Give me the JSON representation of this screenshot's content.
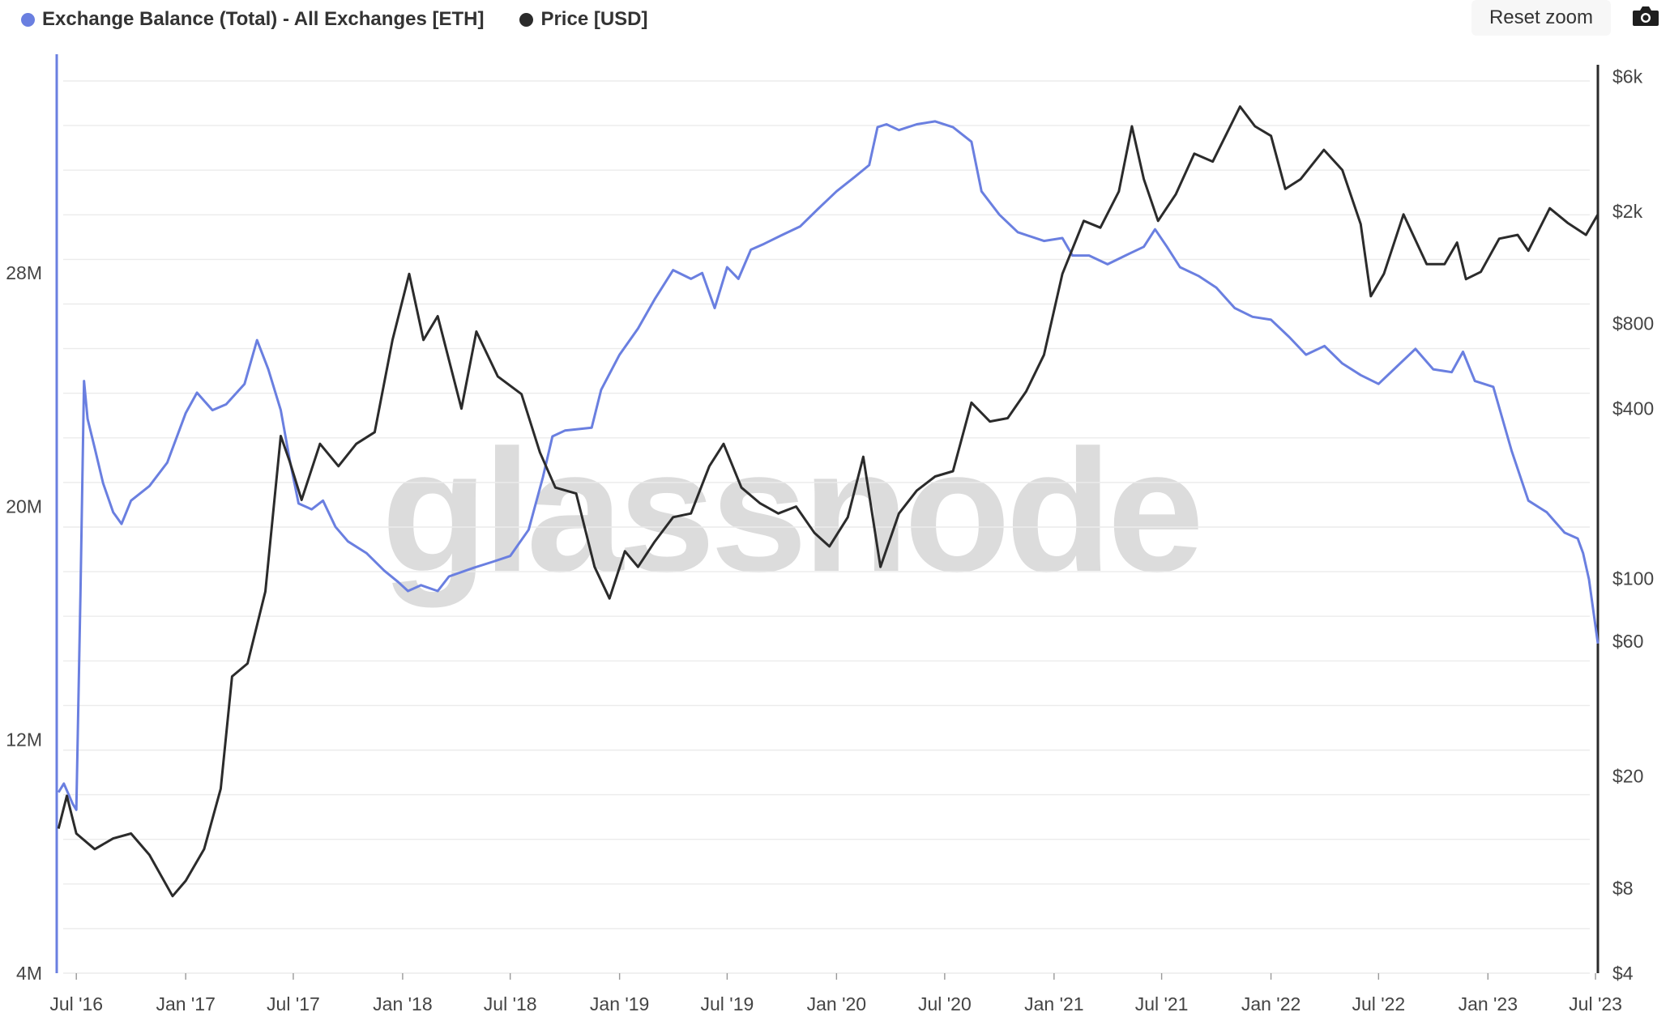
{
  "legend": {
    "series1": "Exchange Balance (Total) - All Exchanges [ETH]",
    "series2": "Price [USD]",
    "color1": "#6a7fe0",
    "color2": "#2b2b2b"
  },
  "controls": {
    "reset_zoom": "Reset zoom",
    "camera_icon": "camera-icon"
  },
  "watermark": "glassnode",
  "chart_data": {
    "type": "line",
    "x_tick_labels": [
      "Jul '16",
      "Jan '17",
      "Jul '17",
      "Jan '18",
      "Jul '18",
      "Jan '19",
      "Jul '19",
      "Jan '20",
      "Jul '20",
      "Jan '21",
      "Jul '21",
      "Jan '22",
      "Jul '22",
      "Jan '23",
      "Jul '23"
    ],
    "x_range": [
      "2016-05-29",
      "2023-07-05"
    ],
    "y_left": {
      "ticks": [
        "4M",
        "12M",
        "20M",
        "28M"
      ],
      "values": [
        4000000,
        12000000,
        20000000,
        28000000
      ],
      "range": [
        4000000,
        35500000
      ]
    },
    "y_right": {
      "scale": "log",
      "ticks": [
        "$4",
        "$8",
        "$20",
        "$60",
        "$100",
        "$400",
        "$800",
        "$2k",
        "$6k"
      ],
      "values": [
        4,
        8,
        20,
        60,
        100,
        400,
        800,
        2000,
        6000
      ],
      "range": [
        4,
        7200
      ]
    },
    "series": [
      {
        "name": "Exchange Balance (Total) - All Exchanges [ETH]",
        "axis": "left",
        "points": [
          [
            "2016-06-01",
            10200000
          ],
          [
            "2016-06-10",
            10500000
          ],
          [
            "2016-06-25",
            9800000
          ],
          [
            "2016-07-01",
            9600000
          ],
          [
            "2016-07-08",
            17000000
          ],
          [
            "2016-07-14",
            24300000
          ],
          [
            "2016-07-20",
            23000000
          ],
          [
            "2016-08-01",
            22000000
          ],
          [
            "2016-08-15",
            20800000
          ],
          [
            "2016-09-01",
            19800000
          ],
          [
            "2016-09-15",
            19400000
          ],
          [
            "2016-10-01",
            20200000
          ],
          [
            "2016-11-01",
            20700000
          ],
          [
            "2016-12-01",
            21500000
          ],
          [
            "2017-01-01",
            23200000
          ],
          [
            "2017-01-20",
            23900000
          ],
          [
            "2017-02-15",
            23300000
          ],
          [
            "2017-03-10",
            23500000
          ],
          [
            "2017-04-10",
            24200000
          ],
          [
            "2017-05-01",
            25700000
          ],
          [
            "2017-05-20",
            24700000
          ],
          [
            "2017-06-10",
            23300000
          ],
          [
            "2017-06-25",
            21600000
          ],
          [
            "2017-07-10",
            20100000
          ],
          [
            "2017-08-01",
            19900000
          ],
          [
            "2017-08-20",
            20200000
          ],
          [
            "2017-09-10",
            19300000
          ],
          [
            "2017-10-01",
            18800000
          ],
          [
            "2017-11-01",
            18400000
          ],
          [
            "2017-12-01",
            17800000
          ],
          [
            "2017-12-25",
            17400000
          ],
          [
            "2018-01-10",
            17100000
          ],
          [
            "2018-02-01",
            17300000
          ],
          [
            "2018-03-01",
            17100000
          ],
          [
            "2018-03-20",
            17600000
          ],
          [
            "2018-05-01",
            17900000
          ],
          [
            "2018-06-01",
            18100000
          ],
          [
            "2018-07-01",
            18300000
          ],
          [
            "2018-08-01",
            19200000
          ],
          [
            "2018-08-25",
            21000000
          ],
          [
            "2018-09-10",
            22400000
          ],
          [
            "2018-10-01",
            22600000
          ],
          [
            "2018-11-15",
            22700000
          ],
          [
            "2018-12-01",
            24000000
          ],
          [
            "2019-01-01",
            25200000
          ],
          [
            "2019-02-01",
            26100000
          ],
          [
            "2019-03-01",
            27100000
          ],
          [
            "2019-04-01",
            28100000
          ],
          [
            "2019-05-01",
            27800000
          ],
          [
            "2019-05-20",
            28000000
          ],
          [
            "2019-06-10",
            26800000
          ],
          [
            "2019-07-01",
            28200000
          ],
          [
            "2019-07-20",
            27800000
          ],
          [
            "2019-08-10",
            28800000
          ],
          [
            "2019-09-01",
            29000000
          ],
          [
            "2019-10-01",
            29300000
          ],
          [
            "2019-11-01",
            29600000
          ],
          [
            "2019-12-01",
            30200000
          ],
          [
            "2020-01-01",
            30800000
          ],
          [
            "2020-02-01",
            31300000
          ],
          [
            "2020-02-25",
            31700000
          ],
          [
            "2020-03-10",
            33000000
          ],
          [
            "2020-03-25",
            33100000
          ],
          [
            "2020-04-15",
            32900000
          ],
          [
            "2020-05-15",
            33100000
          ],
          [
            "2020-06-15",
            33200000
          ],
          [
            "2020-07-15",
            33000000
          ],
          [
            "2020-08-15",
            32500000
          ],
          [
            "2020-09-01",
            30800000
          ],
          [
            "2020-10-01",
            30000000
          ],
          [
            "2020-11-01",
            29400000
          ],
          [
            "2020-12-15",
            29100000
          ],
          [
            "2021-01-15",
            29200000
          ],
          [
            "2021-02-01",
            28600000
          ],
          [
            "2021-03-01",
            28600000
          ],
          [
            "2021-04-01",
            28300000
          ],
          [
            "2021-05-01",
            28600000
          ],
          [
            "2021-06-01",
            28900000
          ],
          [
            "2021-06-20",
            29500000
          ],
          [
            "2021-07-10",
            28900000
          ],
          [
            "2021-08-01",
            28200000
          ],
          [
            "2021-09-01",
            27900000
          ],
          [
            "2021-10-01",
            27500000
          ],
          [
            "2021-11-01",
            26800000
          ],
          [
            "2021-12-01",
            26500000
          ],
          [
            "2022-01-01",
            26400000
          ],
          [
            "2022-02-01",
            25800000
          ],
          [
            "2022-03-01",
            25200000
          ],
          [
            "2022-04-01",
            25500000
          ],
          [
            "2022-05-01",
            24900000
          ],
          [
            "2022-06-01",
            24500000
          ],
          [
            "2022-07-01",
            24200000
          ],
          [
            "2022-08-01",
            24800000
          ],
          [
            "2022-09-01",
            25400000
          ],
          [
            "2022-10-01",
            24700000
          ],
          [
            "2022-11-01",
            24600000
          ],
          [
            "2022-11-20",
            25300000
          ],
          [
            "2022-12-10",
            24300000
          ],
          [
            "2023-01-10",
            24100000
          ],
          [
            "2023-02-10",
            21900000
          ],
          [
            "2023-03-10",
            20200000
          ],
          [
            "2023-04-10",
            19800000
          ],
          [
            "2023-05-10",
            19100000
          ],
          [
            "2023-06-01",
            18900000
          ],
          [
            "2023-06-10",
            18400000
          ],
          [
            "2023-06-20",
            17500000
          ],
          [
            "2023-07-05",
            15300000
          ]
        ]
      },
      {
        "name": "Price [USD]",
        "axis": "right",
        "points": [
          [
            "2016-06-01",
            13
          ],
          [
            "2016-06-15",
            17
          ],
          [
            "2016-07-01",
            12.5
          ],
          [
            "2016-08-01",
            11
          ],
          [
            "2016-09-01",
            12
          ],
          [
            "2016-10-01",
            12.5
          ],
          [
            "2016-11-01",
            10.5
          ],
          [
            "2016-12-10",
            7.5
          ],
          [
            "2017-01-01",
            8.5
          ],
          [
            "2017-02-01",
            11
          ],
          [
            "2017-03-01",
            18
          ],
          [
            "2017-03-20",
            45
          ],
          [
            "2017-04-15",
            50
          ],
          [
            "2017-05-15",
            90
          ],
          [
            "2017-06-10",
            320
          ],
          [
            "2017-06-25",
            260
          ],
          [
            "2017-07-15",
            190
          ],
          [
            "2017-08-15",
            300
          ],
          [
            "2017-09-15",
            250
          ],
          [
            "2017-10-15",
            300
          ],
          [
            "2017-11-15",
            330
          ],
          [
            "2017-12-15",
            700
          ],
          [
            "2018-01-12",
            1200
          ],
          [
            "2018-02-05",
            700
          ],
          [
            "2018-03-01",
            850
          ],
          [
            "2018-04-10",
            400
          ],
          [
            "2018-05-05",
            750
          ],
          [
            "2018-06-10",
            520
          ],
          [
            "2018-07-20",
            450
          ],
          [
            "2018-08-20",
            280
          ],
          [
            "2018-09-15",
            210
          ],
          [
            "2018-10-20",
            200
          ],
          [
            "2018-11-20",
            110
          ],
          [
            "2018-12-15",
            85
          ],
          [
            "2019-01-10",
            125
          ],
          [
            "2019-02-01",
            110
          ],
          [
            "2019-03-01",
            135
          ],
          [
            "2019-04-01",
            165
          ],
          [
            "2019-05-01",
            170
          ],
          [
            "2019-06-01",
            250
          ],
          [
            "2019-06-25",
            300
          ],
          [
            "2019-07-25",
            210
          ],
          [
            "2019-08-25",
            185
          ],
          [
            "2019-09-25",
            170
          ],
          [
            "2019-10-25",
            180
          ],
          [
            "2019-11-25",
            145
          ],
          [
            "2019-12-20",
            130
          ],
          [
            "2020-01-20",
            165
          ],
          [
            "2020-02-15",
            270
          ],
          [
            "2020-03-15",
            110
          ],
          [
            "2020-04-15",
            170
          ],
          [
            "2020-05-15",
            205
          ],
          [
            "2020-06-15",
            230
          ],
          [
            "2020-07-15",
            240
          ],
          [
            "2020-08-15",
            420
          ],
          [
            "2020-09-15",
            360
          ],
          [
            "2020-10-15",
            370
          ],
          [
            "2020-11-15",
            460
          ],
          [
            "2020-12-15",
            620
          ],
          [
            "2021-01-15",
            1200
          ],
          [
            "2021-02-20",
            1850
          ],
          [
            "2021-03-20",
            1750
          ],
          [
            "2021-04-20",
            2350
          ],
          [
            "2021-05-12",
            4000
          ],
          [
            "2021-06-01",
            2600
          ],
          [
            "2021-06-25",
            1850
          ],
          [
            "2021-07-25",
            2300
          ],
          [
            "2021-08-25",
            3200
          ],
          [
            "2021-09-25",
            3000
          ],
          [
            "2021-11-10",
            4700
          ],
          [
            "2021-12-05",
            4000
          ],
          [
            "2022-01-01",
            3700
          ],
          [
            "2022-01-25",
            2400
          ],
          [
            "2022-02-20",
            2600
          ],
          [
            "2022-03-31",
            3300
          ],
          [
            "2022-05-01",
            2800
          ],
          [
            "2022-06-01",
            1800
          ],
          [
            "2022-06-18",
            1000
          ],
          [
            "2022-07-10",
            1200
          ],
          [
            "2022-08-12",
            1950
          ],
          [
            "2022-09-20",
            1300
          ],
          [
            "2022-10-20",
            1300
          ],
          [
            "2022-11-10",
            1550
          ],
          [
            "2022-11-25",
            1150
          ],
          [
            "2022-12-20",
            1220
          ],
          [
            "2023-01-20",
            1600
          ],
          [
            "2023-02-20",
            1650
          ],
          [
            "2023-03-10",
            1450
          ],
          [
            "2023-04-15",
            2050
          ],
          [
            "2023-05-15",
            1820
          ],
          [
            "2023-06-15",
            1650
          ],
          [
            "2023-07-05",
            1950
          ]
        ]
      }
    ],
    "grid": true,
    "legend_position": "top-left"
  }
}
